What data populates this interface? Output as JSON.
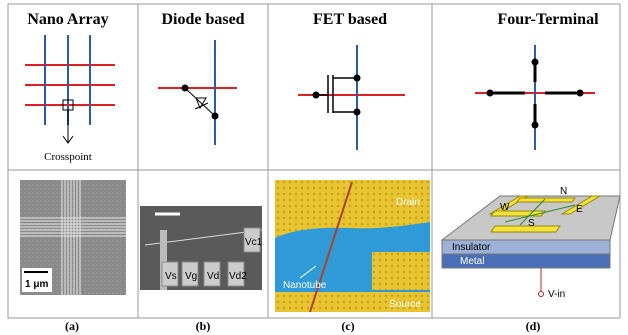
{
  "panels": [
    {
      "title": "Nano Array",
      "caption": "(a)",
      "labels": [
        "Crosspoint",
        "1 μm"
      ]
    },
    {
      "title": "Diode based",
      "caption": "(b)",
      "labels": [
        "Vs",
        "Vg",
        "Vd",
        "Vd2",
        "Vc1"
      ]
    },
    {
      "title": "FET based",
      "caption": "(c)",
      "labels": [
        "Drain",
        "Nanotube",
        "Source"
      ]
    },
    {
      "title": "Four-Terminal",
      "caption": "(d)",
      "labels": [
        "N",
        "W",
        "E",
        "S",
        "Insulator",
        "Metal",
        "V-in"
      ]
    }
  ]
}
